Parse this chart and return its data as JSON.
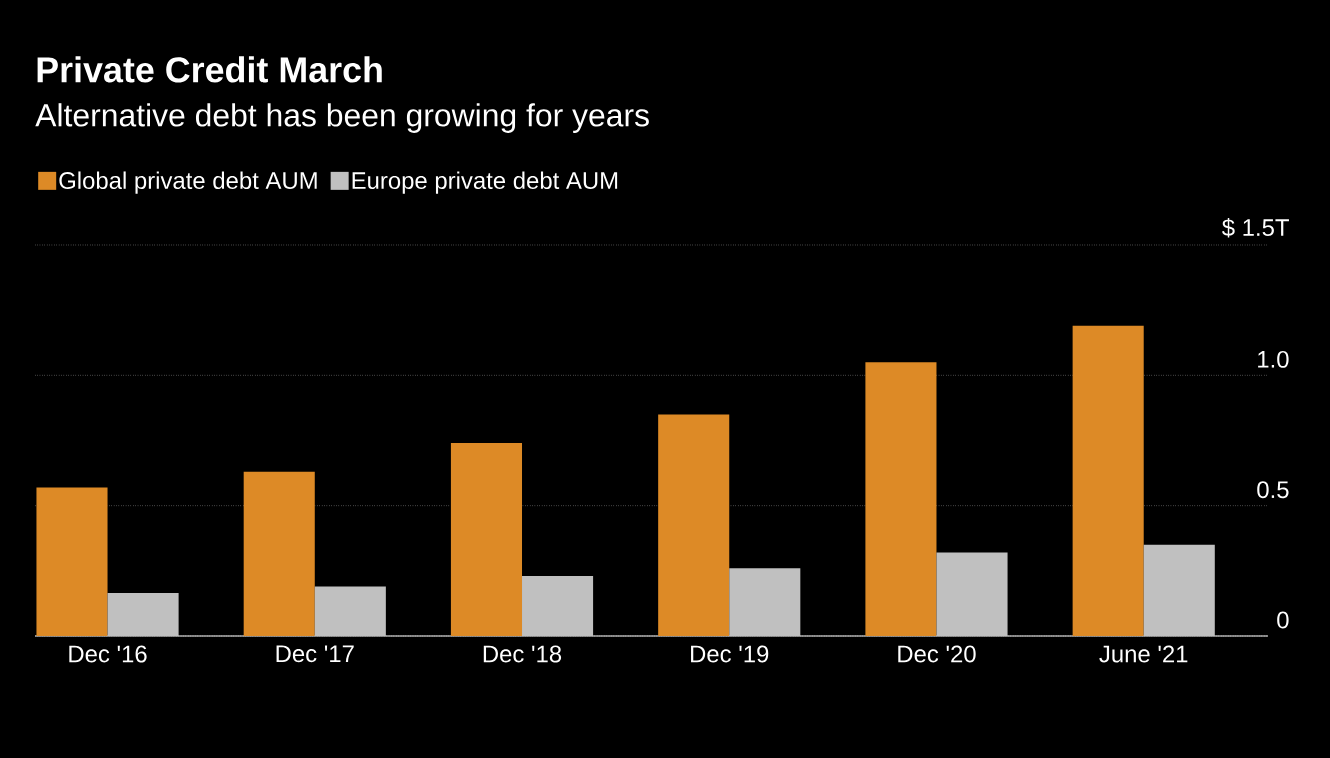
{
  "chart_data": {
    "type": "bar",
    "title": "Private Credit March",
    "subtitle": "Alternative debt has been growing for years",
    "categories": [
      "Dec '16",
      "Dec '17",
      "Dec '18",
      "Dec '19",
      "Dec '20",
      "June '21"
    ],
    "series": [
      {
        "name": "Global private debt AUM",
        "color": "#dd8a26",
        "values": [
          0.57,
          0.63,
          0.74,
          0.85,
          1.05,
          1.19
        ]
      },
      {
        "name": "Europe private debt AUM",
        "color": "#c0c0c0",
        "values": [
          0.165,
          0.19,
          0.23,
          0.26,
          0.32,
          0.35
        ]
      }
    ],
    "ylim": [
      0,
      1.5
    ],
    "yticks": [
      0,
      0.5,
      {
        "value": 1.0,
        "label": "1.0"
      },
      {
        "value": 1.5,
        "label": "$ 1.5T"
      }
    ],
    "grid": "y",
    "legend": "top left"
  }
}
